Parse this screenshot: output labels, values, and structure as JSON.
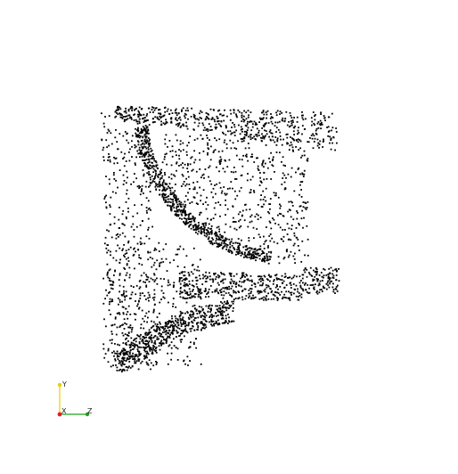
{
  "viewer": {
    "background": "#ffffff",
    "point_color": "#000000"
  },
  "axes": {
    "y_label": "Y",
    "x_label": "X",
    "z_label": "Z",
    "y_color": "#e6d000",
    "z_color": "#1fa01f",
    "x_color": "#e02020"
  }
}
